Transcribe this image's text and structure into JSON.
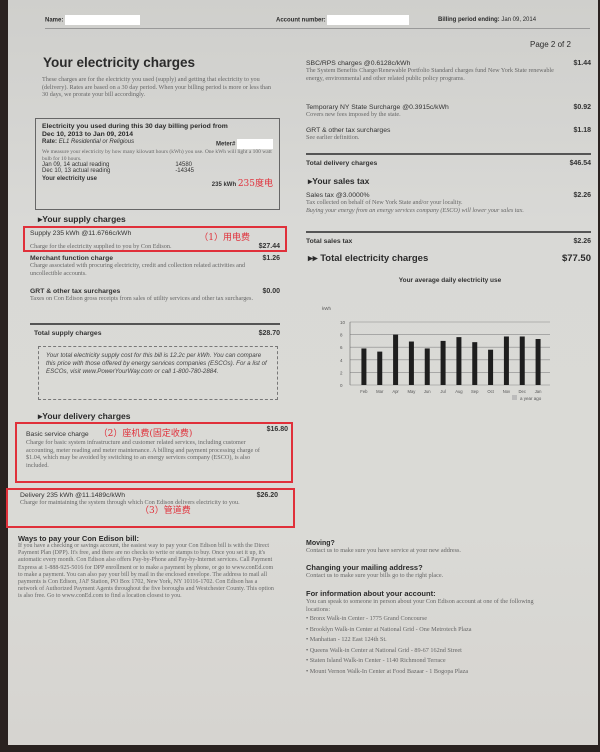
{
  "header": {
    "name_label": "Name:",
    "account_label": "Account number:",
    "billing_label": "Billing period ending:",
    "billing_date": "Jan 09, 2014",
    "page": "Page 2 of 2"
  },
  "title": "Your electricity charges",
  "intro": "These charges are for the electricity you used (supply) and getting that electricity to you (delivery). Rates are based on a 30 day period. When your billing period is more or less than 30 days, we prorate your bill accordingly.",
  "usage": {
    "heading": "Electricity you used during this 30 day billing period from Dec 10, 2013 to Jan 09, 2014",
    "rate_label": "Rate:",
    "rate": "EL1 Residential or Religious",
    "meter_label": "Meter#",
    "note": "We measure your electricity by how many kilowatt hours (kWh) you use. One kWh will light a 100 watt bulb for 10 hours.",
    "readings": [
      {
        "label": "Jan 09, 14 actual reading",
        "value": "14580"
      },
      {
        "label": "Dec 10, 13 actual reading",
        "value": "-14345"
      }
    ],
    "use_label": "Your electricity use",
    "use_value": "235 kWh",
    "annotation": "235度电"
  },
  "supply": {
    "heading": "Your supply charges",
    "items": [
      {
        "title": "Supply 235 kWh @11.6766c/kWh",
        "amount": "$27.44",
        "desc": "Charge for the electricity supplied to you by Con Edison.",
        "annotation": "（1）用电费"
      },
      {
        "title": "Merchant function charge",
        "amount": "$1.26",
        "desc": "Charge associated with procuring electricity, credit and collection related activities and uncollectible accounts."
      },
      {
        "title": "GRT & other tax surcharges",
        "amount": "$0.00",
        "desc": "Taxes on Con Edison gross receipts from sales of utility services and other tax surcharges."
      }
    ],
    "total_label": "Total supply charges",
    "total": "$28.70",
    "esco": "Your total electricity supply cost for this bill is 12.2c per kWh. You can compare this price with those offered by energy services companies (ESCOs). For a list of ESCOs, visit www.PowerYourWay.com or call 1-800-780-2884."
  },
  "delivery": {
    "heading": "Your delivery charges",
    "items": [
      {
        "title": "Basic service charge",
        "amount": "$16.80",
        "desc": "Charge for basic system infrastructure and customer related services, including customer accounting, meter reading and meter maintenance. A billing and payment processing charge of $1.04, which may be avoided by switching to an energy services company (ESCO), is also included.",
        "annotation": "（2）座机费(固定收费)"
      },
      {
        "title": "Delivery 235 kWh @11.1489c/kWh",
        "amount": "$26.20",
        "desc": "Charge for maintaining the system through which Con Edison delivers electricity to you.",
        "annotation": "（3）管道费"
      },
      {
        "title": "SBC/RPS charges @0.6128c/kWh",
        "amount": "$1.44",
        "desc": "The System Benefits Charge/Renewable Portfolio Standard charges fund New York State renewable energy, environmental and other related public policy programs."
      },
      {
        "title": "Temporary NY State Surcharge @0.3915c/kWh",
        "amount": "$0.92",
        "desc": "Covers new fees imposed by the state."
      },
      {
        "title": "GRT & other tax surcharges",
        "amount": "$1.18",
        "desc": "See earlier definition."
      }
    ],
    "total_label": "Total delivery charges",
    "total": "$46.54"
  },
  "sales_tax": {
    "heading": "Your sales tax",
    "title": "Sales tax @3.0000%",
    "amount": "$2.26",
    "desc": "Tax collected on behalf of New York State and/or your locality.",
    "desc2": "Buying your energy from an energy services company (ESCO) will lower your sales tax.",
    "total_label": "Total sales tax",
    "total": "$2.26"
  },
  "grand_total": {
    "label": "Total electricity charges",
    "amount": "$77.50"
  },
  "chart_data": {
    "type": "bar",
    "title": "Your average daily electricity use",
    "ylabel": "kWh",
    "ylim": [
      0,
      10
    ],
    "yticks": [
      0,
      2,
      4,
      6,
      8,
      10
    ],
    "grid": true,
    "categories": [
      "Feb",
      "Mar",
      "Apr",
      "May",
      "Jun",
      "Jul",
      "Aug",
      "Sep",
      "Oct",
      "Nov",
      "Dec",
      "Jan"
    ],
    "values": [
      5.8,
      5.3,
      8.0,
      6.9,
      5.8,
      7.0,
      7.6,
      6.8,
      5.6,
      7.7,
      7.7,
      7.3
    ],
    "legend": "a year ago",
    "legend_position": "bottom-right",
    "bar_color": "#1e1e1e"
  },
  "pay": {
    "heading": "Ways to pay your Con Edison bill:",
    "text": "If you have a checking or savings account, the easiest way to pay your Con Edison bill is with the Direct Payment Plan (DPP). It's free, and there are no checks to write or stamps to buy. Once you set it up, it's automatic every month. Con Edison also offers Pay-by-Phone and Pay-by-Internet services. Call Payment Express at 1-888-925-5016 for DPP enrollment or to make a payment by phone, or go to www.conEd.com to make a payment. You can also pay your bill by mail in the enclosed envelope. The address to mail all payments is Con Edison, JAF Station, PO Box 1702, New York, NY 10116-1702. Con Edison has a network of Authorized Payment Agents throughout the five boroughs and Westchester County. This option is also free. Go to www.conEd.com to find a location closest to you."
  },
  "moving": {
    "heading": "Moving?",
    "text": "Contact us to make sure you have service at your new address."
  },
  "mailing": {
    "heading": "Changing your mailing address?",
    "text": "Contact us to make sure your bills go to the right place."
  },
  "info": {
    "heading": "For information about your account:",
    "text": "You can speak to someone in person about your Con Edison account at one of the following locations:",
    "locations": [
      "Bronx Walk-in Center - 1775 Grand Concourse",
      "Brooklyn Walk-in Center at National Grid - One Metrotech Plaza",
      "Manhattan - 122 East 124th St.",
      "Queens Walk-in Center at National Grid - 89-67 162nd Street",
      "Staten Island Walk-in Center - 1140 Richmond Terrace",
      "Mount Vernon Walk-In Center at Food Bazaar - 1 Bogopa Plaza"
    ]
  },
  "colors": {
    "annotation": "#e0303a",
    "paper": "#d9d9d6"
  }
}
